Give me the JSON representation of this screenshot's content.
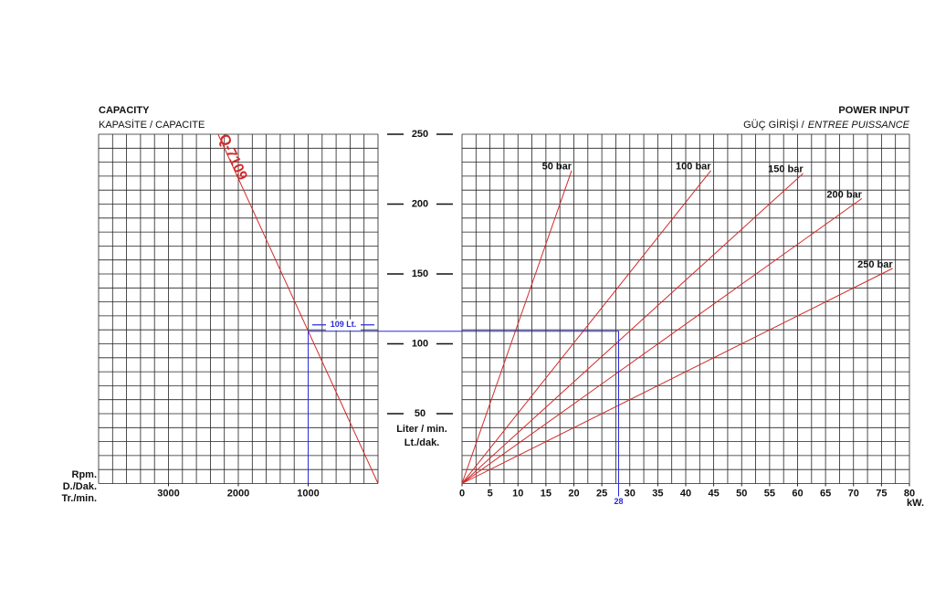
{
  "chart_data": [
    {
      "type": "line",
      "title": "CAPACITY",
      "subtitle": "KAPASİTE / CAPACITE",
      "x_label": [
        "Rpm.",
        "D./Dak.",
        "Tr./min."
      ],
      "y_label": [
        "Liter / min.",
        "Lt./dak."
      ],
      "xlim": [
        4000,
        0
      ],
      "ylim": [
        0,
        250
      ],
      "xticks": [
        3000,
        2000,
        1000
      ],
      "yticks": [
        50,
        100,
        150,
        200,
        250
      ],
      "grid": true,
      "series": [
        {
          "name": "Q-7109",
          "color": "#d42a2a",
          "x": [
            0,
            2290
          ],
          "values": [
            0,
            250
          ]
        }
      ],
      "annotation": {
        "x": 1000,
        "y": {
          "value": 109,
          "label": "109 Lt."
        },
        "color": "#2b2bd6"
      }
    },
    {
      "type": "line",
      "title": "POWER INPUT",
      "subtitle": [
        "GÜÇ GİRİŞİ /",
        "ENTREE PUISSANCE"
      ],
      "x_label": "kW.",
      "xlim": [
        0,
        80
      ],
      "ylim": [
        0,
        250
      ],
      "xticks": [
        0,
        5,
        10,
        15,
        20,
        25,
        30,
        35,
        40,
        45,
        50,
        55,
        60,
        65,
        70,
        75,
        80
      ],
      "grid": true,
      "series": [
        {
          "name": "50 bar",
          "color": "#d42a2a",
          "x": [
            0,
            19.6
          ],
          "values": [
            0,
            224
          ]
        },
        {
          "name": "100 bar",
          "color": "#d42a2a",
          "x": [
            0,
            44.5
          ],
          "values": [
            0,
            224
          ]
        },
        {
          "name": "150 bar",
          "color": "#d42a2a",
          "x": [
            0,
            61
          ],
          "values": [
            0,
            222
          ]
        },
        {
          "name": "200 bar",
          "color": "#d42a2a",
          "x": [
            0,
            71.5
          ],
          "values": [
            0,
            204
          ]
        },
        {
          "name": "250 bar",
          "color": "#d42a2a",
          "x": [
            0,
            77
          ],
          "values": [
            0,
            154
          ]
        }
      ],
      "annotation": {
        "x": 28,
        "y": 109,
        "color": "#2b2bd6"
      }
    }
  ]
}
